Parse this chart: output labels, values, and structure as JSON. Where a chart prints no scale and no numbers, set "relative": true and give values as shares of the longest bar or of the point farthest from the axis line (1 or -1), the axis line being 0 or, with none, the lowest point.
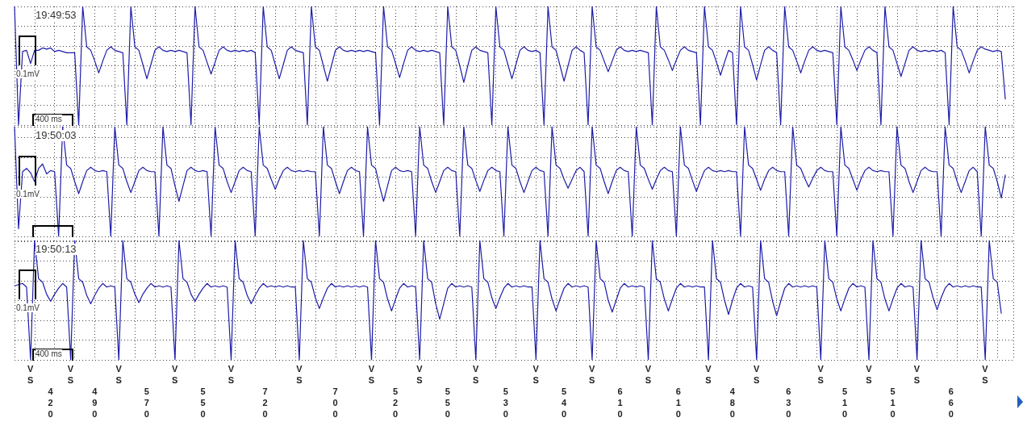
{
  "chart_data": [
    {
      "type": "line",
      "relative": true,
      "color": "#1c1ca8",
      "line_style": "solid",
      "grid": true,
      "tick_labels": false,
      "annotations": [
        "19:49:53",
        "0.1mV",
        "400 ms"
      ],
      "categories": [
        null,
        null,
        null,
        null,
        null,
        null,
        null,
        null,
        null,
        null,
        null,
        null,
        null,
        null,
        null,
        null,
        null,
        null,
        null,
        null,
        null,
        null,
        null,
        null,
        null,
        null,
        null,
        null,
        null,
        null,
        null,
        null,
        null,
        null,
        null,
        null,
        null,
        null,
        null,
        null,
        null,
        null,
        null,
        null,
        null,
        null,
        null,
        null,
        null,
        null,
        null,
        null,
        null,
        null,
        null,
        null,
        null,
        null,
        null,
        null,
        null,
        null,
        null,
        null,
        null,
        null,
        null,
        null,
        null,
        null,
        null,
        null,
        null,
        null,
        null,
        null,
        null,
        null,
        null,
        null,
        null,
        null,
        null,
        null,
        null,
        null,
        null,
        null,
        null,
        null,
        null,
        null,
        null,
        null,
        null,
        null,
        null,
        null,
        null,
        null,
        null,
        null,
        null,
        null,
        null,
        null,
        null,
        null,
        null,
        null,
        null,
        null,
        null,
        null,
        null,
        null,
        null,
        null,
        null,
        null,
        null,
        null,
        null,
        null,
        null,
        null,
        null,
        null,
        null,
        null,
        null,
        null,
        null,
        null,
        null,
        null,
        null,
        null,
        null,
        null,
        null,
        null,
        null,
        null,
        null,
        null,
        null,
        null,
        null,
        null,
        null,
        null,
        null,
        null,
        null,
        null,
        null,
        null,
        null,
        null,
        null,
        null,
        null,
        null,
        null,
        null,
        null,
        null,
        null,
        null,
        null,
        null,
        null,
        null,
        null,
        null,
        null,
        null,
        null,
        null,
        null,
        null,
        null,
        null,
        null,
        null,
        null,
        null,
        null,
        null,
        null,
        null,
        null,
        null,
        null,
        null,
        null,
        null,
        null,
        null,
        null,
        null,
        null,
        null,
        null,
        null,
        null,
        null,
        null,
        null,
        null,
        null,
        null,
        null,
        null,
        null,
        null,
        null,
        null,
        null,
        null,
        null,
        null,
        null,
        null,
        null,
        null,
        null,
        null,
        null,
        null,
        null,
        null,
        null,
        null,
        null,
        null,
        null,
        null,
        null,
        null,
        null,
        null,
        null,
        null,
        null,
        null,
        null,
        null,
        null
      ],
      "values": [
        1,
        0,
        0.62,
        0.63,
        0.52,
        0.63,
        0.63,
        0.65,
        0.64,
        0.65,
        0.62,
        0.63,
        0.62,
        0.61,
        0.61,
        0.61,
        0,
        1,
        0.66,
        0.63,
        0.54,
        0.44,
        0.54,
        0.63,
        0.66,
        0.63,
        0.62,
        0.61,
        0,
        1,
        0.66,
        0.63,
        0.51,
        0.39,
        0.51,
        0.63,
        0.66,
        0.63,
        0.62,
        0.63,
        0.62,
        0.63,
        0.62,
        0.61,
        0,
        1,
        0.66,
        0.63,
        0.53,
        0.43,
        0.53,
        0.63,
        0.66,
        0.63,
        0.62,
        0.63,
        0.62,
        0.63,
        0.62,
        0.63,
        0.61,
        0,
        1,
        0.66,
        0.63,
        0.51,
        0.39,
        0.51,
        0.63,
        0.66,
        0.63,
        0.62,
        0.61,
        0,
        1,
        0.66,
        0.63,
        0.5,
        0.37,
        0.5,
        0.63,
        0.66,
        0.63,
        0.62,
        0.63,
        0.62,
        0.63,
        0.62,
        0.63,
        0.62,
        0.61,
        0,
        1,
        0.66,
        0.63,
        0.52,
        0.4,
        0.52,
        0.63,
        0.66,
        0.63,
        0.62,
        0.63,
        0.62,
        0.63,
        0.62,
        0.61,
        0,
        1,
        0.66,
        0.63,
        0.5,
        0.36,
        0.5,
        0.63,
        0.66,
        0.63,
        0.62,
        0.61,
        0,
        1,
        0.66,
        0.63,
        0.51,
        0.39,
        0.51,
        0.63,
        0.66,
        0.63,
        0.62,
        0.63,
        0.61,
        0,
        1,
        0.66,
        0.63,
        0.5,
        0.37,
        0.5,
        0.63,
        0.66,
        0.63,
        0.61,
        0,
        1,
        0.66,
        0.63,
        0.54,
        0.45,
        0.54,
        0.63,
        0.66,
        0.63,
        0.62,
        0.63,
        0.62,
        0.63,
        0.62,
        0.61,
        0,
        1,
        0.66,
        0.63,
        0.55,
        0.46,
        0.55,
        0.63,
        0.66,
        0.63,
        0.62,
        0.61,
        0,
        1,
        0.66,
        0.63,
        0.53,
        0.42,
        0.53,
        0.63,
        0.61,
        0,
        1,
        0.66,
        0.63,
        0.51,
        0.38,
        0.51,
        0.63,
        0.66,
        0.63,
        0.61,
        0,
        1,
        0.66,
        0.63,
        0.54,
        0.44,
        0.54,
        0.63,
        0.66,
        0.63,
        0.62,
        0.63,
        0.62,
        0.61,
        0,
        1,
        0.66,
        0.63,
        0.55,
        0.46,
        0.55,
        0.63,
        0.66,
        0.63,
        0.61,
        0,
        1,
        0.66,
        0.63,
        0.52,
        0.41,
        0.52,
        0.63,
        0.66,
        0.63,
        0.62,
        0.63,
        0.62,
        0.63,
        0.62,
        0.63,
        0.61,
        0,
        1,
        0.66,
        0.63,
        0.54,
        0.44,
        0.54,
        0.63,
        0.66,
        0.64,
        0.63,
        0.62,
        0.63,
        0.62,
        0.22,
        null,
        null
      ]
    },
    {
      "type": "line",
      "relative": true,
      "color": "#1c1ca8",
      "line_style": "solid",
      "grid": true,
      "tick_labels": false,
      "annotations": [
        "19:50:03",
        "0.1mV"
      ],
      "categories": [
        null,
        null,
        null,
        null,
        null,
        null,
        null,
        null,
        null,
        null,
        null,
        null,
        null,
        null,
        null,
        null,
        null,
        null,
        null,
        null,
        null,
        null,
        null,
        null,
        null,
        null,
        null,
        null,
        null,
        null,
        null,
        null,
        null,
        null,
        null,
        null,
        null,
        null,
        null,
        null,
        null,
        null,
        null,
        null,
        null,
        null,
        null,
        null,
        null,
        null,
        null,
        null,
        null,
        null,
        null,
        null,
        null,
        null,
        null,
        null,
        null,
        null,
        null,
        null,
        null,
        null,
        null,
        null,
        null,
        null,
        null,
        null,
        null,
        null,
        null,
        null,
        null,
        null,
        null,
        null,
        null,
        null,
        null,
        null,
        null,
        null,
        null,
        null,
        null,
        null,
        null,
        null,
        null,
        null,
        null,
        null,
        null,
        null,
        null,
        null,
        null,
        null,
        null,
        null,
        null,
        null,
        null,
        null,
        null,
        null,
        null,
        null,
        null,
        null,
        null,
        null,
        null,
        null,
        null,
        null,
        null,
        null,
        null,
        null,
        null,
        null,
        null,
        null,
        null,
        null,
        null,
        null,
        null,
        null,
        null,
        null,
        null,
        null,
        null,
        null,
        null,
        null,
        null,
        null,
        null,
        null,
        null,
        null,
        null,
        null,
        null,
        null,
        null,
        null,
        null,
        null,
        null,
        null,
        null,
        null,
        null,
        null,
        null,
        null,
        null,
        null,
        null,
        null,
        null,
        null,
        null,
        null,
        null,
        null,
        null,
        null,
        null,
        null,
        null,
        null,
        null,
        null,
        null,
        null,
        null,
        null,
        null,
        null,
        null,
        null,
        null,
        null,
        null,
        null,
        null,
        null,
        null,
        null,
        null,
        null,
        null,
        null,
        null,
        null,
        null,
        null,
        null,
        null,
        null,
        null,
        null,
        null,
        null,
        null,
        null,
        null,
        null,
        null,
        null,
        null,
        null,
        null,
        null,
        null,
        null,
        null,
        null,
        null,
        null,
        null,
        null,
        null,
        null,
        null,
        null,
        null,
        null,
        null,
        null,
        null,
        null,
        null,
        null,
        null,
        null,
        null,
        null,
        null,
        null,
        null
      ],
      "values": [
        1,
        0.07,
        0.59,
        0.62,
        0.58,
        0.5,
        0.62,
        0.66,
        0.57,
        0.6,
        0.59,
        0,
        1,
        0.65,
        0.62,
        0.5,
        0.39,
        0.5,
        0.6,
        0.63,
        0.6,
        0.59,
        0.6,
        0.59,
        0,
        1,
        0.65,
        0.62,
        0.5,
        0.4,
        0.5,
        0.6,
        0.63,
        0.6,
        0.59,
        0.59,
        0,
        1,
        0.65,
        0.62,
        0.46,
        0.32,
        0.46,
        0.6,
        0.63,
        0.6,
        0.59,
        0.6,
        0.59,
        0,
        1,
        0.65,
        0.62,
        0.5,
        0.4,
        0.5,
        0.6,
        0.63,
        0.6,
        0.59,
        0,
        1,
        0.65,
        0.62,
        0.52,
        0.43,
        0.52,
        0.6,
        0.63,
        0.6,
        0.59,
        0.6,
        0.59,
        0.6,
        0.59,
        0.59,
        0,
        1,
        0.65,
        0.62,
        0.5,
        0.39,
        0.5,
        0.6,
        0.63,
        0.6,
        0.59,
        0,
        1,
        0.65,
        0.62,
        0.46,
        0.32,
        0.46,
        0.6,
        0.63,
        0.6,
        0.59,
        0.6,
        0.59,
        0,
        1,
        0.65,
        0.62,
        0.5,
        0.4,
        0.5,
        0.6,
        0.63,
        0.6,
        0.59,
        0,
        1,
        0.65,
        0.62,
        0.51,
        0.41,
        0.51,
        0.6,
        0.63,
        0.6,
        0.59,
        0,
        1,
        0.65,
        0.62,
        0.5,
        0.4,
        0.5,
        0.6,
        0.63,
        0.6,
        0.59,
        0,
        1,
        0.65,
        0.62,
        0.52,
        0.44,
        0.52,
        0.6,
        0.63,
        0.59,
        0,
        1,
        0.65,
        0.62,
        0.5,
        0.39,
        0.5,
        0.6,
        0.63,
        0.6,
        0.59,
        0,
        1,
        0.65,
        0.62,
        0.52,
        0.43,
        0.52,
        0.6,
        0.63,
        0.6,
        0.59,
        0,
        1,
        0.65,
        0.62,
        0.51,
        0.41,
        0.51,
        0.6,
        0.63,
        0.6,
        0.59,
        0.6,
        0.59,
        0.6,
        0.59,
        0.59,
        0,
        1,
        0.65,
        0.62,
        0.52,
        0.42,
        0.52,
        0.6,
        0.63,
        0.6,
        0.59,
        0.59,
        0,
        1,
        0.65,
        0.62,
        0.53,
        0.45,
        0.53,
        0.6,
        0.63,
        0.6,
        0.59,
        0.59,
        0,
        1,
        0.65,
        0.62,
        0.52,
        0.42,
        0.52,
        0.6,
        0.63,
        0.6,
        0.59,
        0.6,
        0.59,
        0.59,
        0,
        1,
        0.65,
        0.62,
        0.5,
        0.4,
        0.5,
        0.6,
        0.63,
        0.6,
        0.59,
        0.59,
        0,
        1,
        0.65,
        0.62,
        0.5,
        0.4,
        0.5,
        0.6,
        0.63,
        0.59,
        0,
        1,
        0.65,
        0.62,
        0.5,
        0.35,
        0.56,
        null,
        null
      ]
    },
    {
      "type": "line",
      "relative": true,
      "color": "#1c1ca8",
      "line_style": "solid",
      "grid": true,
      "tick_labels": false,
      "annotations": [
        "19:50:13",
        "0.1mV",
        "400 ms",
        "VS",
        "420",
        "VS",
        "490",
        "VS",
        "570",
        "VS",
        "550",
        "VS",
        "720",
        "VS",
        "700",
        "VS",
        "520",
        "VS",
        "550",
        "VS",
        "530",
        "VS",
        "540",
        "VS",
        "610",
        "VS",
        "610",
        "VS",
        "480",
        "VS",
        "630",
        "VS",
        "510",
        "VS",
        "510",
        "VS",
        "660",
        "VS"
      ],
      "categories": [
        null,
        null,
        null,
        null,
        null,
        null,
        null,
        null,
        null,
        null,
        null,
        null,
        null,
        null,
        null,
        null,
        null,
        null,
        null,
        null,
        null,
        null,
        null,
        null,
        null,
        null,
        null,
        null,
        null,
        null,
        null,
        null,
        null,
        null,
        null,
        null,
        null,
        null,
        null,
        null,
        null,
        null,
        null,
        null,
        null,
        null,
        null,
        null,
        null,
        null,
        null,
        null,
        null,
        null,
        null,
        null,
        null,
        null,
        null,
        null,
        null,
        null,
        null,
        null,
        null,
        null,
        null,
        null,
        null,
        null,
        null,
        null,
        null,
        null,
        null,
        null,
        null,
        null,
        null,
        null,
        null,
        null,
        null,
        null,
        null,
        null,
        null,
        null,
        null,
        null,
        null,
        null,
        null,
        null,
        null,
        null,
        null,
        null,
        null,
        null,
        null,
        null,
        null,
        null,
        null,
        null,
        null,
        null,
        null,
        null,
        null,
        null,
        null,
        null,
        null,
        null,
        null,
        null,
        null,
        null,
        null,
        null,
        null,
        null,
        null,
        null,
        null,
        null,
        null,
        null,
        null,
        null,
        null,
        null,
        null,
        null,
        null,
        null,
        null,
        null,
        null,
        null,
        null,
        null,
        null,
        null,
        null,
        null,
        null,
        null,
        null,
        null,
        null,
        null,
        null,
        null,
        null,
        null,
        null,
        null,
        null,
        null,
        null,
        null,
        null,
        null,
        null,
        null,
        null,
        null,
        null,
        null,
        null,
        null,
        null,
        null,
        null,
        null,
        null,
        null,
        null,
        null,
        null,
        null,
        null,
        null,
        null,
        null,
        null,
        null,
        null,
        null,
        null,
        null,
        null,
        null,
        null,
        null,
        null,
        null,
        null,
        null,
        null,
        null,
        null,
        null,
        null,
        null,
        null,
        null,
        null,
        null,
        null,
        null,
        null,
        null,
        null,
        null,
        null,
        null,
        null,
        null,
        null,
        null,
        null,
        null,
        null,
        null,
        null,
        null,
        null,
        null,
        null,
        null,
        null,
        null,
        null,
        null,
        null,
        null,
        null,
        null,
        null,
        null,
        null,
        null,
        null,
        null,
        null,
        null
      ],
      "values": [
        0.62,
        0.63,
        0.64,
        0.61,
        0,
        1,
        0.68,
        0.65,
        0.55,
        0.49,
        0.55,
        0.6,
        0.64,
        0.61,
        0,
        1,
        0.68,
        0.65,
        0.54,
        0.47,
        0.54,
        0.6,
        0.64,
        0.61,
        0.62,
        0.61,
        0,
        1,
        0.68,
        0.65,
        0.55,
        0.48,
        0.55,
        0.6,
        0.64,
        0.61,
        0.62,
        0.61,
        0.62,
        0.61,
        0,
        1,
        0.68,
        0.65,
        0.55,
        0.49,
        0.55,
        0.6,
        0.64,
        0.61,
        0.62,
        0.61,
        0.62,
        0.61,
        0,
        1,
        0.68,
        0.65,
        0.54,
        0.47,
        0.54,
        0.6,
        0.64,
        0.61,
        0.62,
        0.61,
        0.62,
        0.61,
        0.62,
        0.61,
        0.61,
        0,
        1,
        0.68,
        0.65,
        0.52,
        0.43,
        0.52,
        0.6,
        0.64,
        0.61,
        0.62,
        0.61,
        0.62,
        0.61,
        0.62,
        0.61,
        0.62,
        0.61,
        0,
        1,
        0.68,
        0.65,
        0.51,
        0.41,
        0.51,
        0.6,
        0.64,
        0.61,
        0.62,
        0.61,
        0,
        1,
        0.68,
        0.65,
        0.47,
        0.34,
        0.47,
        0.6,
        0.64,
        0.61,
        0.62,
        0.61,
        0.62,
        0.61,
        0,
        1,
        0.68,
        0.65,
        0.52,
        0.43,
        0.52,
        0.6,
        0.64,
        0.61,
        0.62,
        0.61,
        0.62,
        0.61,
        0.61,
        0,
        1,
        0.68,
        0.65,
        0.51,
        0.41,
        0.51,
        0.6,
        0.64,
        0.61,
        0.62,
        0.61,
        0.62,
        0.61,
        0,
        1,
        0.68,
        0.65,
        0.5,
        0.4,
        0.5,
        0.6,
        0.64,
        0.61,
        0.62,
        0.61,
        0.62,
        0.61,
        0,
        1,
        0.68,
        0.65,
        0.51,
        0.41,
        0.51,
        0.6,
        0.64,
        0.61,
        0.62,
        0.61,
        0.62,
        0.61,
        0.61,
        0,
        1,
        0.68,
        0.65,
        0.5,
        0.38,
        0.5,
        0.6,
        0.64,
        0.61,
        0.62,
        0.61,
        0,
        1,
        0.68,
        0.65,
        0.49,
        0.37,
        0.49,
        0.6,
        0.64,
        0.61,
        0.62,
        0.61,
        0.62,
        0.61,
        0.62,
        0.61,
        0,
        1,
        0.68,
        0.65,
        0.51,
        0.41,
        0.51,
        0.6,
        0.64,
        0.61,
        0.62,
        0.61,
        0,
        1,
        0.68,
        0.65,
        0.51,
        0.41,
        0.51,
        0.6,
        0.64,
        0.61,
        0.62,
        0.61,
        0,
        1,
        0.68,
        0.65,
        0.52,
        0.42,
        0.52,
        0.6,
        0.64,
        0.61,
        0.62,
        0.61,
        0.62,
        0.61,
        0.62,
        0.61,
        0.61,
        0,
        1,
        0.68,
        0.65,
        0.39,
        null,
        null,
        null
      ]
    }
  ]
}
